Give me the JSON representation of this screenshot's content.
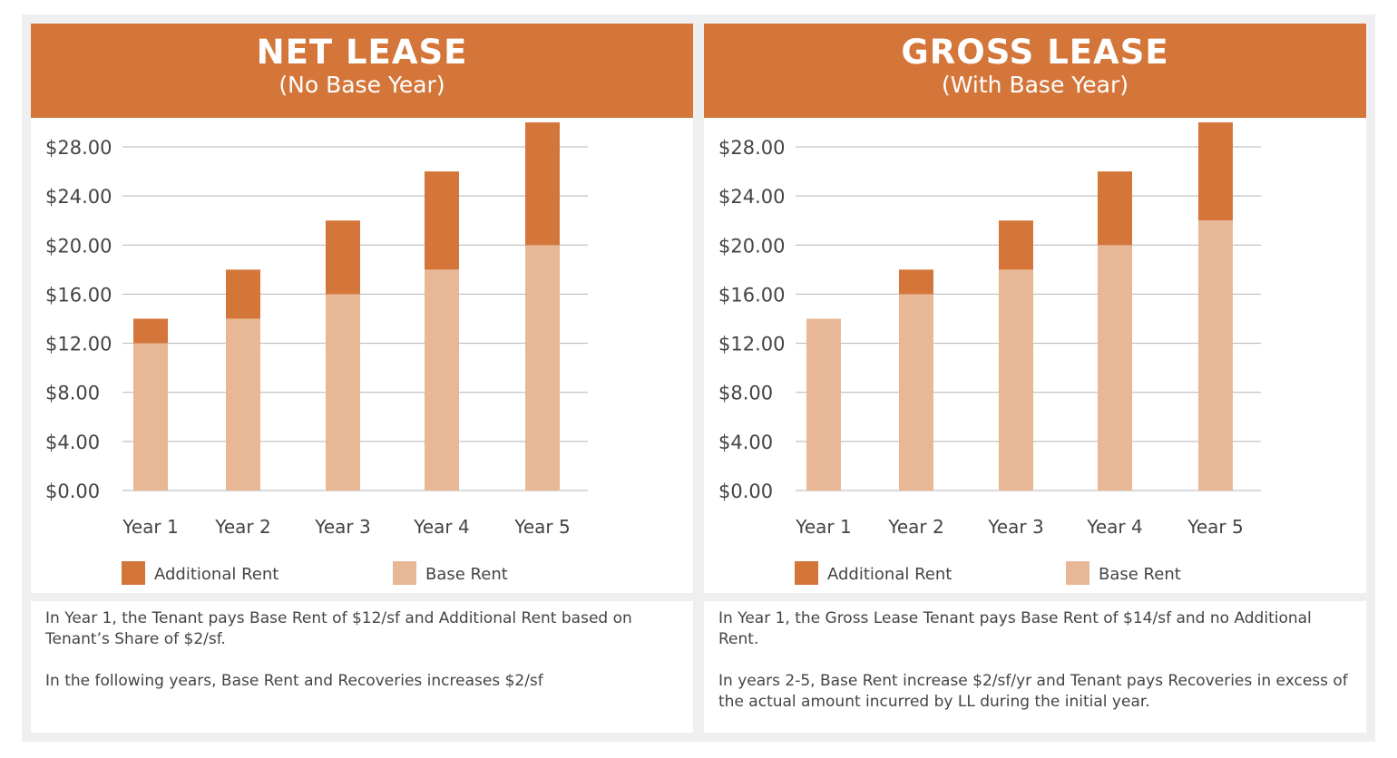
{
  "colors": {
    "additional": "#D4763A",
    "base": "#E8B896",
    "grid": "#b5b5b5",
    "text": "#444444"
  },
  "legend": {
    "additional": "Additional Rent",
    "base": "Base Rent"
  },
  "panels": [
    {
      "title": "NET LEASE",
      "subtitle": "(No Base Year)",
      "notes": [
        "In Year 1, the Tenant pays Base Rent of $12/sf and Additional Rent based on Tenant’s Share of $2/sf.",
        "In the following years, Base Rent and Recoveries increases $2/sf"
      ]
    },
    {
      "title": "GROSS LEASE",
      "subtitle": "(With Base Year)",
      "notes": [
        "In Year 1, the Gross Lease Tenant pays Base Rent of $14/sf and no Additional Rent.",
        "In years 2-5, Base Rent increase $2/sf/yr and Tenant pays Recoveries in excess of the actual amount incurred by LL during the initial year."
      ]
    }
  ],
  "chart_data": [
    {
      "type": "bar",
      "stacked": true,
      "title": "NET LEASE (No Base Year)",
      "categories": [
        "Year 1",
        "Year 2",
        "Year 3",
        "Year 4",
        "Year 5"
      ],
      "series": [
        {
          "name": "Base Rent",
          "values": [
            12,
            14,
            16,
            18,
            20
          ]
        },
        {
          "name": "Additional Rent",
          "values": [
            2,
            4,
            6,
            8,
            10
          ]
        }
      ],
      "ylim": [
        0,
        28
      ],
      "yticks": [
        "$0.00",
        "$4.00",
        "$8.00",
        "$12.00",
        "$16.00",
        "$20.00",
        "$24.00",
        "$28.00"
      ],
      "grid": true,
      "legend": "bottom"
    },
    {
      "type": "bar",
      "stacked": true,
      "title": "GROSS LEASE (With Base Year)",
      "categories": [
        "Year 1",
        "Year 2",
        "Year 3",
        "Year 4",
        "Year 5"
      ],
      "series": [
        {
          "name": "Base Rent",
          "values": [
            14,
            16,
            18,
            20,
            22
          ]
        },
        {
          "name": "Additional Rent",
          "values": [
            0,
            2,
            4,
            6,
            8
          ]
        }
      ],
      "ylim": [
        0,
        28
      ],
      "yticks": [
        "$0.00",
        "$4.00",
        "$8.00",
        "$12.00",
        "$16.00",
        "$20.00",
        "$24.00",
        "$28.00"
      ],
      "grid": true,
      "legend": "bottom"
    }
  ]
}
